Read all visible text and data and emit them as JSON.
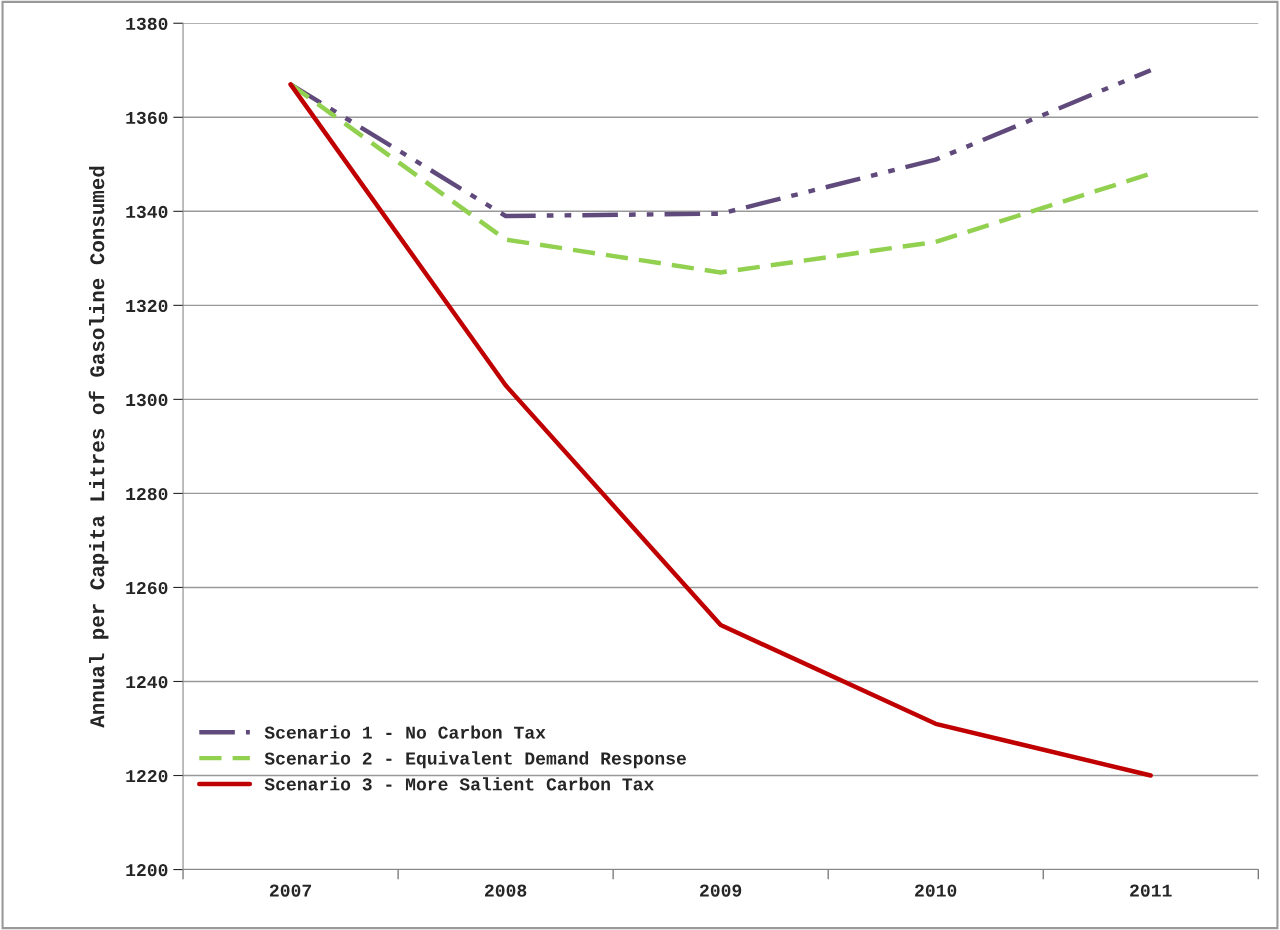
{
  "chart_data": {
    "type": "line",
    "ylabel": "Annual per Capita Litres of Gasoline Consumed",
    "categories": [
      "2007",
      "2008",
      "2009",
      "2010",
      "2011"
    ],
    "series": [
      {
        "name": "Scenario 1 - No Carbon Tax",
        "color": "#604a7b",
        "line_style": "dashdot",
        "values": [
          1367,
          1339,
          1339.5,
          1351,
          1370
        ]
      },
      {
        "name": "Scenario 2 - Equivalent Demand Response",
        "color": "#92d050",
        "line_style": "dashed",
        "values": [
          1367,
          1334,
          1327,
          1333.5,
          1348
        ]
      },
      {
        "name": "Scenario 3 - More Salient Carbon Tax",
        "color": "#c00000",
        "line_style": "solid",
        "values": [
          1367,
          1303,
          1252,
          1231,
          1220
        ]
      }
    ],
    "ylim": [
      1200,
      1380
    ],
    "yticks": [
      1200,
      1220,
      1240,
      1260,
      1280,
      1300,
      1320,
      1340,
      1360,
      1380
    ],
    "grid": "y",
    "legend": "bottom left"
  }
}
